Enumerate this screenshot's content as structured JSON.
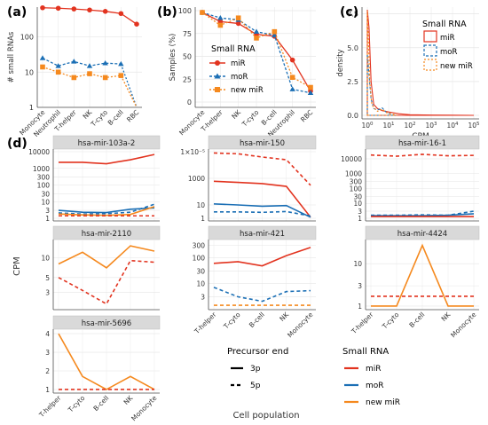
{
  "colors": {
    "mir": "#e2331f",
    "mor": "#1b6fb5",
    "newmir": "#f5891e",
    "grid": "#e6e6e6",
    "strip": "#d9d9d9",
    "axis": "#4d4d4d"
  },
  "panel_labels": [
    "(a)",
    "(b)",
    "(c)",
    "(d)"
  ],
  "legends": {
    "b": {
      "title": "Small RNA",
      "items": [
        "miR",
        "moR",
        "new miR"
      ]
    },
    "c": {
      "title": "Small RNA",
      "items": [
        "miR",
        "moR",
        "new miR"
      ]
    },
    "d_end": {
      "title": "Precursor end",
      "items": [
        "3p",
        "5p"
      ]
    },
    "d_rna": {
      "title": "Small RNA",
      "items": [
        "miR",
        "moR",
        "new miR"
      ]
    }
  },
  "chart_data": [
    {
      "id": "a",
      "type": "line",
      "ylabel": "# small RNAs",
      "yscale": "log",
      "yticks": [
        "1",
        "10",
        "100"
      ],
      "ylim": [
        1,
        700
      ],
      "categories": [
        "Monocyte",
        "Neutrophil",
        "T-helper",
        "NK",
        "T-cyto",
        "B-cell",
        "RBC"
      ],
      "series": [
        {
          "name": "miR",
          "values": [
            670,
            650,
            620,
            580,
            530,
            460,
            230
          ]
        },
        {
          "name": "moR",
          "values": [
            25,
            15,
            20,
            15,
            18,
            17,
            1
          ]
        },
        {
          "name": "new miR",
          "values": [
            14,
            10,
            7,
            9,
            7,
            8,
            1
          ]
        }
      ]
    },
    {
      "id": "b",
      "type": "line",
      "ylabel": "Samples (%)",
      "yticks": [
        "0",
        "25",
        "50",
        "75",
        "100"
      ],
      "ylim": [
        0,
        100
      ],
      "categories": [
        "Monocyte",
        "T-helper",
        "NK",
        "T-cyto",
        "B-cell",
        "Neutrophil",
        "RBC"
      ],
      "series": [
        {
          "name": "miR",
          "values": [
            98,
            88,
            86,
            74,
            72,
            46,
            12
          ]
        },
        {
          "name": "moR",
          "values": [
            98,
            92,
            90,
            77,
            73,
            14,
            10
          ]
        },
        {
          "name": "new miR",
          "values": [
            98,
            84,
            92,
            70,
            77,
            27,
            16
          ]
        }
      ]
    },
    {
      "id": "c",
      "type": "area",
      "xlabel": "CPM",
      "ylabel": "density",
      "xscale": "log",
      "xticks": [
        "10^0",
        "10^1",
        "10^2",
        "10^3",
        "10^4",
        "10^5"
      ],
      "yticks": [
        "0.0",
        "2.5",
        "5.0",
        "7.5"
      ],
      "ylim": [
        0,
        8
      ],
      "series": [
        {
          "name": "miR",
          "x": [
            1.0,
            1.2,
            1.5,
            2,
            3,
            5,
            10,
            30,
            100,
            1000,
            100000
          ],
          "y": [
            7.8,
            6.5,
            2.5,
            0.8,
            0.5,
            0.35,
            0.25,
            0.12,
            0.05,
            0.02,
            0.0
          ]
        },
        {
          "name": "moR",
          "x": [
            1.0,
            1.2,
            1.5,
            2,
            3,
            5,
            8,
            12,
            20
          ],
          "y": [
            4.5,
            3.0,
            1.2,
            0.5,
            0.4,
            0.55,
            0.2,
            0.1,
            0.0
          ]
        },
        {
          "name": "new miR",
          "x": [
            1.0,
            1.1,
            1.3,
            1.6,
            2,
            3,
            5,
            8,
            15,
            25
          ],
          "y": [
            7.7,
            6.0,
            2.5,
            0.9,
            0.55,
            0.3,
            0.45,
            0.2,
            0.1,
            0.0
          ]
        }
      ]
    },
    {
      "id": "d",
      "type": "line",
      "ylabel": "CPM",
      "xlabel": "Cell population",
      "categories": [
        "T-helper",
        "T-cyto",
        "B-cell",
        "NK",
        "Monocyte"
      ],
      "facets": [
        {
          "title": "hsa-mir-103a-2",
          "yscale": "log",
          "yticks": [
            "1",
            "3",
            "10",
            "30",
            "100",
            "300",
            "1000",
            "10000"
          ],
          "ylim": [
            1,
            10000
          ],
          "series": [
            {
              "name": "miR 3p",
              "values": [
                2300,
                2300,
                1900,
                3300,
                6800
              ]
            },
            {
              "name": "moR 3p",
              "values": [
                3.0,
                2.3,
                2.2,
                3.5,
                4.2
              ]
            },
            {
              "name": "moR 5p",
              "values": [
                2.1,
                1.8,
                1.9,
                2.3,
                7.0
              ]
            },
            {
              "name": "new miR 3p",
              "values": [
                1.8,
                1.6,
                1.5,
                1.7,
                5.0
              ]
            },
            {
              "name": "miR 5p",
              "values": [
                1.4,
                1.4,
                1.4,
                1.4,
                1.4
              ]
            }
          ]
        },
        {
          "title": "hsa-mir-150",
          "yscale": "log",
          "yticks": [
            "1",
            "10",
            "1000",
            "1×10⁻⁵"
          ],
          "ylim": [
            1,
            100000
          ],
          "series": [
            {
              "name": "miR 5p",
              "values": [
                80000,
                70000,
                40000,
                25000,
                300
              ]
            },
            {
              "name": "miR 3p",
              "values": [
                600,
                500,
                400,
                250,
                1.2
              ]
            },
            {
              "name": "moR 3p",
              "values": [
                12,
                10,
                8,
                9,
                1.2
              ]
            },
            {
              "name": "moR 5p",
              "values": [
                3.0,
                3.0,
                2.8,
                3.2,
                1.5
              ]
            }
          ]
        },
        {
          "title": "hsa-mir-16-1",
          "yscale": "log",
          "yticks": [
            "1",
            "3",
            "10",
            "30",
            "100",
            "300",
            "1000",
            "10000"
          ],
          "ylim": [
            1,
            30000
          ],
          "series": [
            {
              "name": "miR 5p",
              "values": [
                18000,
                15000,
                20000,
                16000,
                17000
              ]
            },
            {
              "name": "moR 5p",
              "values": [
                1.6,
                1.6,
                1.7,
                1.6,
                3.0
              ]
            },
            {
              "name": "moR 3p",
              "values": [
                1.5,
                1.5,
                1.5,
                1.6,
                2.0
              ]
            },
            {
              "name": "miR 3p",
              "values": [
                1.3,
                1.3,
                1.3,
                1.3,
                1.3
              ]
            }
          ]
        },
        {
          "title": "hsa-mir-2110",
          "yscale": "log",
          "yticks": [
            "3",
            "5",
            "10"
          ],
          "ylim": [
            1.8,
            17
          ],
          "series": [
            {
              "name": "new miR 3p",
              "values": [
                8.0,
                12.0,
                7.0,
                15.0,
                12.5
              ]
            },
            {
              "name": "miR 5p",
              "values": [
                5.0,
                3.2,
                2.0,
                9.0,
                8.5
              ]
            }
          ]
        },
        {
          "title": "hsa-mir-421",
          "yscale": "log",
          "yticks": [
            "3",
            "10",
            "30",
            "100",
            "300"
          ],
          "ylim": [
            1.2,
            400
          ],
          "series": [
            {
              "name": "miR 3p",
              "values": [
                60,
                70,
                48,
                120,
                250
              ]
            },
            {
              "name": "moR 5p",
              "values": [
                7.0,
                3.0,
                2.0,
                4.8,
                5.2
              ]
            },
            {
              "name": "new miR 5p",
              "values": [
                1.4,
                1.4,
                1.4,
                1.4,
                1.4
              ]
            }
          ]
        },
        {
          "title": "hsa-mir-4424",
          "yscale": "log",
          "yticks": [
            "1",
            "3",
            "10"
          ],
          "ylim": [
            0.95,
            32
          ],
          "series": [
            {
              "name": "new miR 3p",
              "values": [
                1.0,
                1.0,
                27.0,
                1.0,
                1.0
              ]
            },
            {
              "name": "miR 5p",
              "values": [
                1.7,
                1.7,
                1.7,
                1.7,
                1.7
              ]
            }
          ]
        },
        {
          "title": "hsa-mir-5696",
          "yscale": "linear",
          "yticks": [
            "1",
            "2",
            "3",
            "4"
          ],
          "ylim": [
            0.95,
            4.1
          ],
          "series": [
            {
              "name": "new miR 3p",
              "values": [
                4.0,
                1.7,
                1.0,
                1.7,
                1.0
              ]
            },
            {
              "name": "miR 5p",
              "values": [
                1.0,
                1.0,
                1.0,
                1.0,
                1.0
              ]
            }
          ]
        }
      ]
    }
  ]
}
